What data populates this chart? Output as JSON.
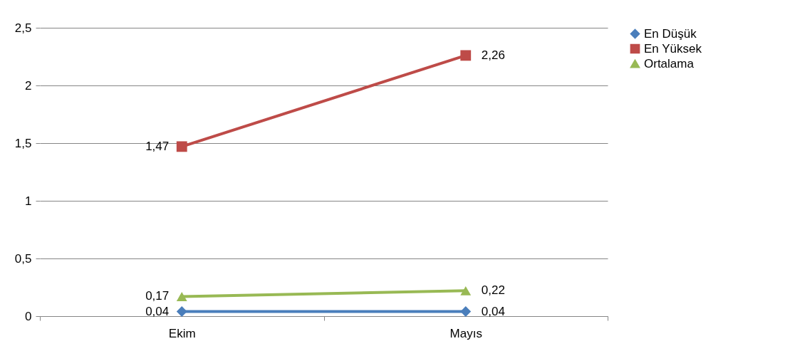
{
  "chart_data": {
    "type": "line",
    "categories": [
      "Ekim",
      "Mayıs"
    ],
    "series": [
      {
        "name": "En Düşük",
        "color": "#4a7ebb",
        "marker": "diamond",
        "values": [
          0.04,
          0.04
        ],
        "value_labels": [
          "0,04",
          "0,04"
        ]
      },
      {
        "name": "En Yüksek",
        "color": "#be4b48",
        "marker": "square",
        "values": [
          1.47,
          2.26
        ],
        "value_labels": [
          "1,47",
          "2,26"
        ]
      },
      {
        "name": "Ortalama",
        "color": "#98b954",
        "marker": "triangle",
        "values": [
          0.17,
          0.22
        ],
        "value_labels": [
          "0,17",
          "0,22"
        ]
      }
    ],
    "ylim": [
      0,
      2.5
    ],
    "yticks": [
      0,
      {
        "value": 0.5,
        "label": "0,5"
      },
      1,
      {
        "value": 1.5,
        "label": "1,5"
      },
      2,
      {
        "value": 2.5,
        "label": "2,5"
      }
    ],
    "grid": "y",
    "legend": "right"
  }
}
